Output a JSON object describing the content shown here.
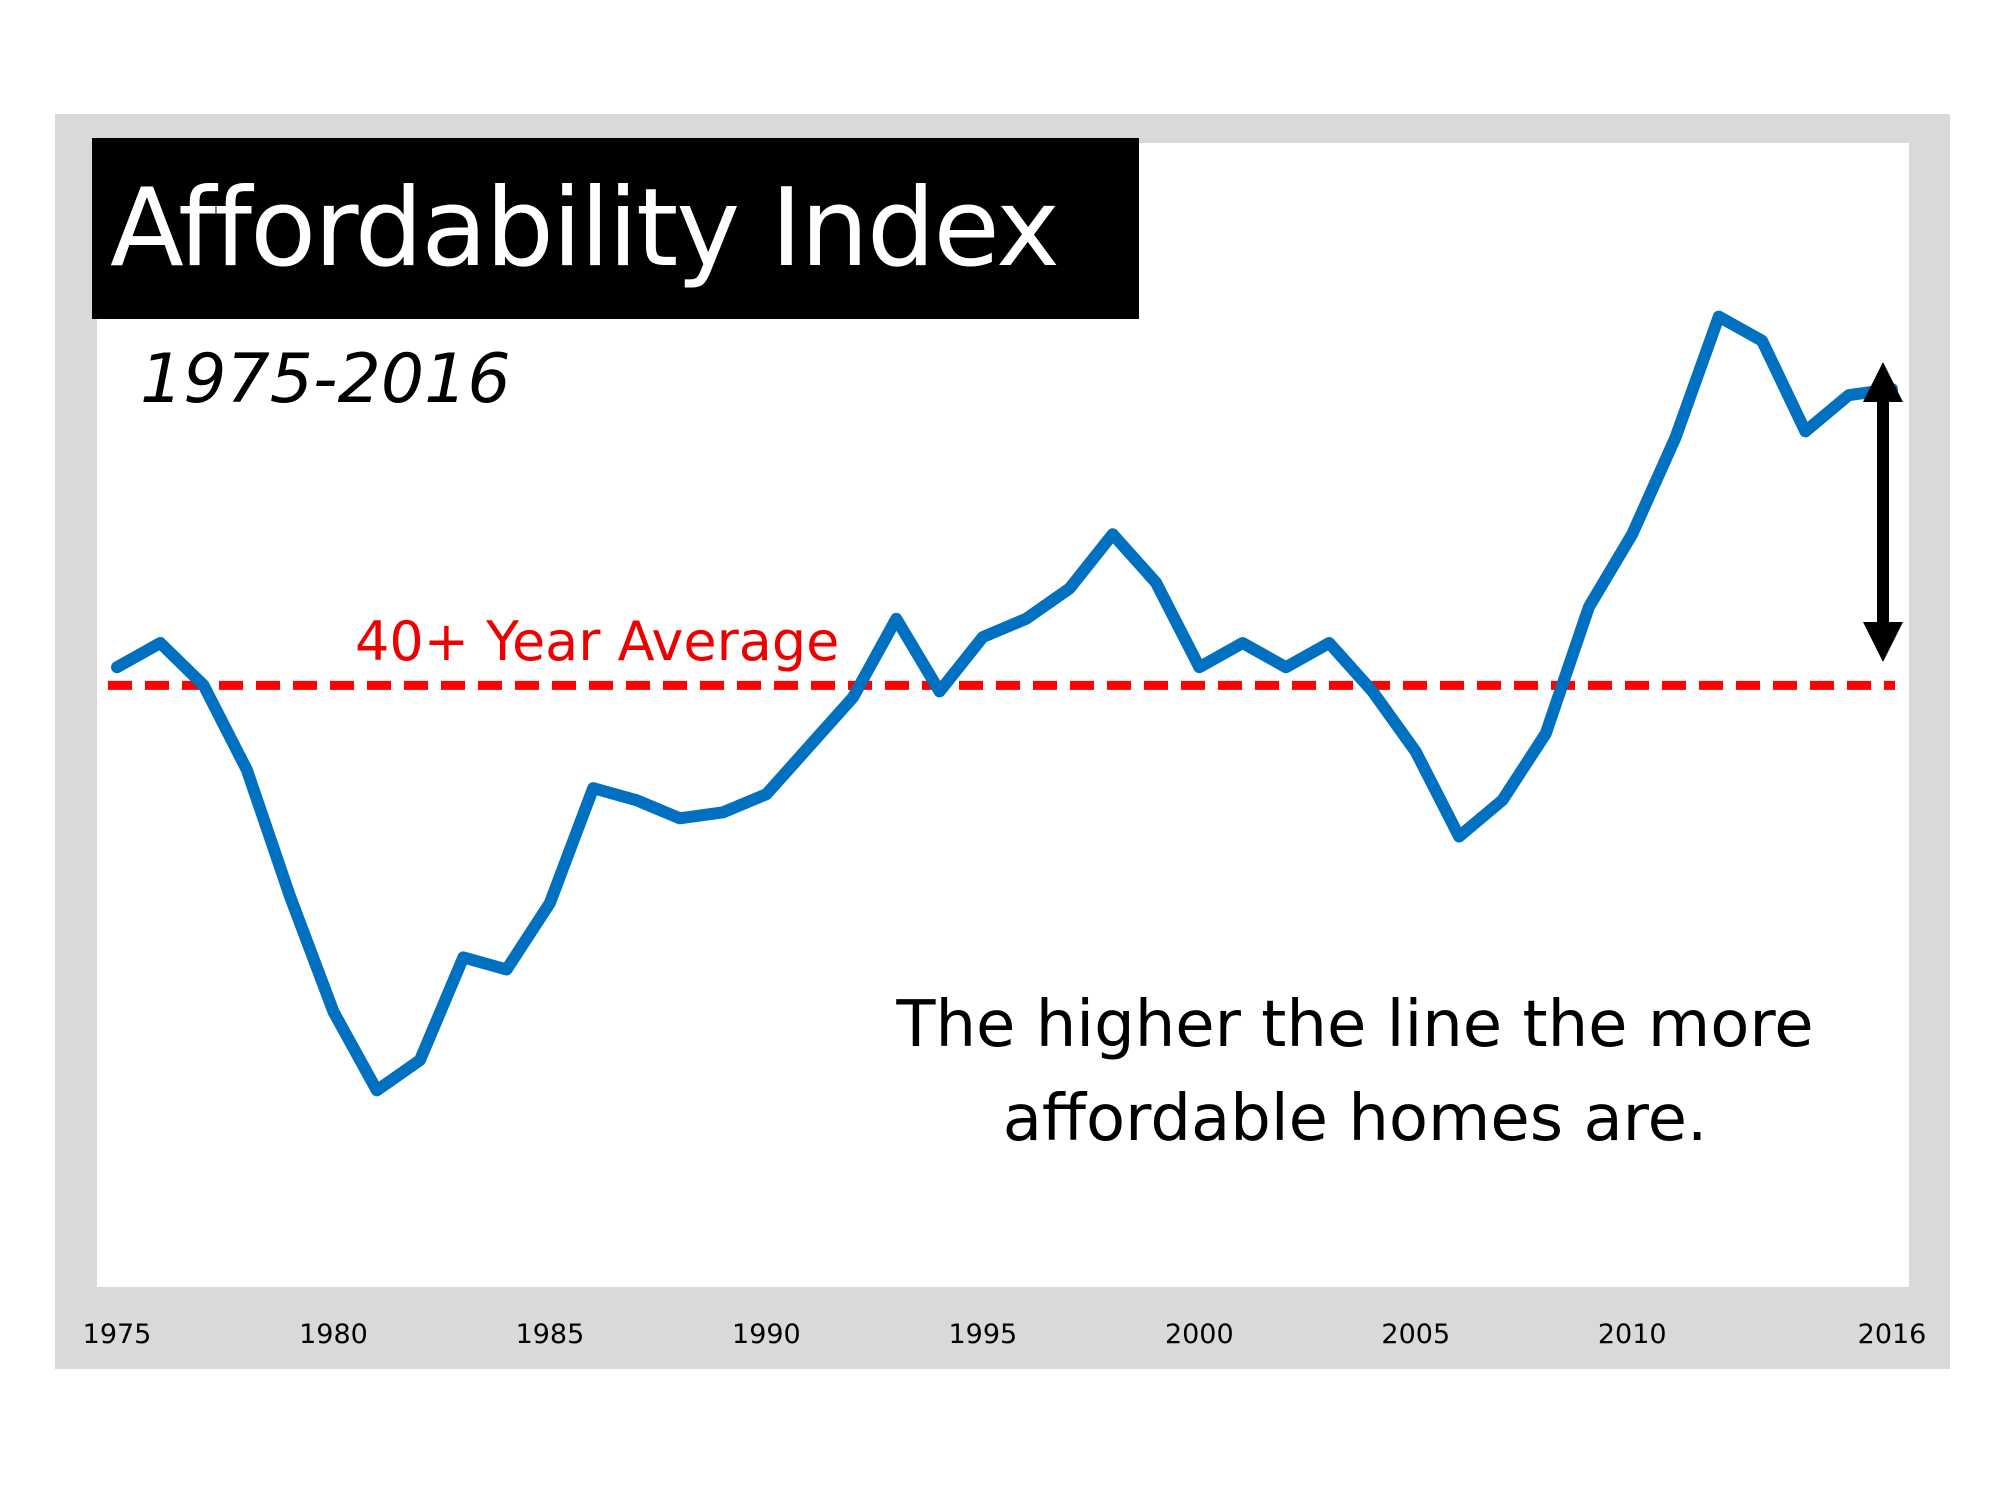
{
  "chart_data": {
    "type": "line",
    "title": "Affordability Index",
    "subtitle": "1975-2016",
    "xlabel": "",
    "ylabel": "",
    "x": [
      1975,
      1976,
      1977,
      1978,
      1979,
      1980,
      1981,
      1982,
      1983,
      1984,
      1985,
      1986,
      1987,
      1988,
      1989,
      1990,
      1991,
      1992,
      1993,
      1994,
      1995,
      1996,
      1997,
      1998,
      1999,
      2000,
      2001,
      2002,
      2003,
      2004,
      2005,
      2006,
      2007,
      2008,
      2009,
      2010,
      2011,
      2012,
      2013,
      2014,
      2015,
      2016
    ],
    "series": [
      {
        "name": "Affordability Index",
        "color": "#0070c0",
        "values": [
          139,
          143,
          136,
          122,
          101,
          82,
          69,
          74,
          91,
          89,
          100,
          119,
          117,
          114,
          115,
          118,
          126,
          134,
          147,
          135,
          144,
          147,
          152,
          161,
          153,
          139,
          143,
          139,
          143,
          135,
          125,
          111,
          117,
          128,
          149,
          161,
          177,
          197,
          193,
          178,
          184,
          185
        ]
      }
    ],
    "reference_lines": [
      {
        "name": "40+ Year Average",
        "value": 136,
        "color": "#ff0000",
        "style": "dashed"
      }
    ],
    "x_ticks": [
      "1975",
      "1980",
      "1985",
      "1990",
      "1995",
      "2000",
      "2005",
      "2010",
      "2016"
    ],
    "xlim": [
      1975,
      2016
    ],
    "ylim": [
      55,
      210
    ],
    "grid": false,
    "legend": "none",
    "annotations": [
      {
        "text": "40+ Year Average",
        "color": "#ff0000"
      },
      {
        "text": "The higher the line the more affordable homes are."
      },
      {
        "type": "double-arrow",
        "between": [
          "40+ Year Average",
          2016
        ],
        "color": "#000000"
      }
    ]
  },
  "labels": {
    "title": "Affordability Index",
    "subtitle": "1975-2016",
    "avg_label": "40+ Year Average",
    "note_line1": "The higher the line the more",
    "note_line2": "affordable homes are."
  }
}
